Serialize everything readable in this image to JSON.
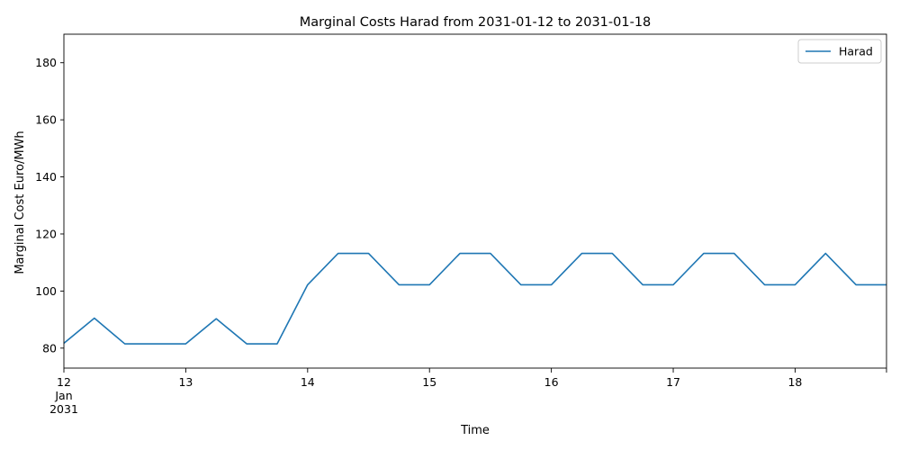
{
  "chart_data": {
    "type": "line",
    "title": "Marginal Costs Harad from 2031-01-12 to 2031-01-18",
    "xlabel": "Time",
    "ylabel": "Marginal Cost Euro/MWh",
    "xlim": [
      "2031-01-12 00:00",
      "2031-01-18 18:00"
    ],
    "ylim": [
      73,
      190
    ],
    "yticks": [
      80,
      100,
      120,
      140,
      160,
      180
    ],
    "xticks": [
      {
        "t": "2031-01-12 00:00",
        "lines": [
          "12",
          "Jan",
          "2031"
        ]
      },
      {
        "t": "2031-01-13 00:00",
        "lines": [
          "13"
        ]
      },
      {
        "t": "2031-01-14 00:00",
        "lines": [
          "14"
        ]
      },
      {
        "t": "2031-01-15 00:00",
        "lines": [
          "15"
        ]
      },
      {
        "t": "2031-01-16 00:00",
        "lines": [
          "16"
        ]
      },
      {
        "t": "2031-01-17 00:00",
        "lines": [
          "17"
        ]
      },
      {
        "t": "2031-01-18 00:00",
        "lines": [
          "18"
        ]
      }
    ],
    "grid": false,
    "legend_position": "top-right",
    "series": [
      {
        "name": "Harad",
        "color": "#1f77b4",
        "x": [
          "2031-01-12 00:00",
          "2031-01-12 06:00",
          "2031-01-12 12:00",
          "2031-01-12 18:00",
          "2031-01-13 00:00",
          "2031-01-13 06:00",
          "2031-01-13 12:00",
          "2031-01-13 18:00",
          "2031-01-14 00:00",
          "2031-01-14 06:00",
          "2031-01-14 12:00",
          "2031-01-14 18:00",
          "2031-01-15 00:00",
          "2031-01-15 06:00",
          "2031-01-15 12:00",
          "2031-01-15 18:00",
          "2031-01-16 00:00",
          "2031-01-16 06:00",
          "2031-01-16 12:00",
          "2031-01-16 18:00",
          "2031-01-17 00:00",
          "2031-01-17 06:00",
          "2031-01-17 12:00",
          "2031-01-17 18:00",
          "2031-01-18 00:00",
          "2031-01-18 06:00",
          "2031-01-18 12:00",
          "2031-01-18 18:00"
        ],
        "values": [
          81.7,
          90.5,
          81.5,
          81.5,
          81.5,
          90.3,
          81.5,
          81.5,
          102.2,
          113.2,
          113.2,
          102.2,
          102.2,
          113.2,
          113.2,
          102.2,
          102.2,
          113.2,
          113.2,
          102.2,
          102.2,
          113.2,
          113.2,
          102.2,
          102.2,
          113.2,
          102.2,
          102.2
        ]
      }
    ]
  }
}
